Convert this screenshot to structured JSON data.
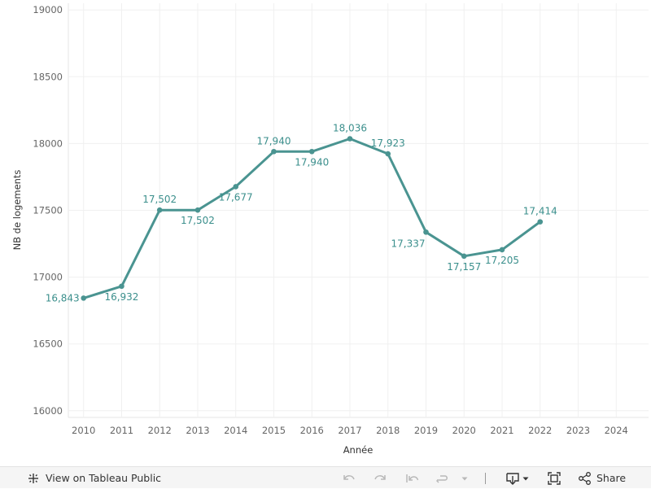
{
  "colors": {
    "line": "#4a9491",
    "label": "#3b8f8c",
    "grid": "#f0f0f0"
  },
  "chart_data": {
    "type": "line",
    "x": [
      2010,
      2011,
      2012,
      2013,
      2014,
      2015,
      2016,
      2017,
      2018,
      2019,
      2020,
      2021,
      2022
    ],
    "values": [
      16843,
      16932,
      17502,
      17502,
      17677,
      17940,
      17940,
      18036,
      17923,
      17337,
      17157,
      17205,
      17414
    ],
    "value_labels": [
      "16,843",
      "16,932",
      "17,502",
      "17,502",
      "17,677",
      "17,940",
      "17,940",
      "18,036",
      "17,923",
      "17,337",
      "17,157",
      "17,205",
      "17,414"
    ],
    "label_positions": [
      "left",
      "below",
      "above",
      "below",
      "below",
      "above",
      "below",
      "above",
      "above",
      "below-left",
      "below",
      "below",
      "above"
    ],
    "xticks": [
      "2010",
      "2011",
      "2012",
      "2013",
      "2014",
      "2015",
      "2016",
      "2017",
      "2018",
      "2019",
      "2020",
      "2021",
      "2022",
      "2023",
      "2024"
    ],
    "xlim": [
      2009.6,
      2024.85
    ],
    "yticks": [
      "16000",
      "16500",
      "17000",
      "17500",
      "18000",
      "18500",
      "19000"
    ],
    "ylim": [
      15950,
      19050
    ],
    "xlabel": "Année",
    "ylabel": "NB de logements",
    "title": ""
  },
  "toolbar": {
    "view_label": "View on Tableau Public",
    "share_label": "Share"
  }
}
